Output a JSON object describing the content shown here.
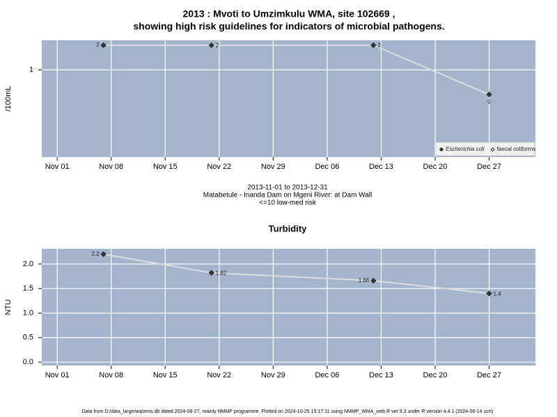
{
  "title": [
    "2013 : Mvoti to Umzimkulu WMA, site 102669 ,",
    "showing high risk guidelines for indicators of microbial pathogens."
  ],
  "caption": [
    "2013-11-01 to 2013-12-31",
    "Matabetule - Inanda Dam on Mgeni River: at Dam Wall",
    "<=10 low-med risk"
  ],
  "footer": "Data from D:/data_large/wq/wms.db dated 2024-08-27, mainly NMMP programme. Plotted on 2024-10-25 15:17:11 using NMMP_WMA_web.R ver 9.3 under R version 4.4.1 (2024-06-14 ucrt)",
  "chart_data": [
    {
      "type": "line",
      "ylabel": "/100mL",
      "x": [
        "2013-11-07",
        "2013-11-21",
        "2013-12-12",
        "2013-12-27"
      ],
      "series": [
        {
          "name": "Escherichia coli",
          "color": "#333333",
          "line_color": "#dddddd",
          "marker": "filled",
          "values": [
            2,
            2,
            2,
            0
          ]
        },
        {
          "name": "faecal coliforms",
          "color": "#333333",
          "marker": "open",
          "values": [
            null,
            null,
            null,
            null
          ]
        }
      ],
      "xlim": [
        "2013-10-30",
        "2014-01-02"
      ],
      "xticks": [
        {
          "value": "2013-11-01",
          "label": "Nov 01"
        },
        {
          "value": "2013-11-08",
          "label": "Nov 08"
        },
        {
          "value": "2013-11-15",
          "label": "Nov 15"
        },
        {
          "value": "2013-11-22",
          "label": "Nov 22"
        },
        {
          "value": "2013-11-29",
          "label": "Nov 29"
        },
        {
          "value": "2013-12-06",
          "label": "Dec 06"
        },
        {
          "value": "2013-12-13",
          "label": "Dec 13"
        },
        {
          "value": "2013-12-20",
          "label": "Dec 20"
        },
        {
          "value": "2013-12-27",
          "label": "Dec 27"
        }
      ],
      "ylim": [
        -2.54,
        2.2
      ],
      "yticks": [
        1
      ],
      "grid": true,
      "legend": "bottom-right",
      "background": "#a3b4cc"
    },
    {
      "type": "line",
      "title": "Turbidity",
      "ylabel": "NTU",
      "x": [
        "2013-11-07",
        "2013-11-21",
        "2013-12-12",
        "2013-12-27"
      ],
      "series": [
        {
          "name": null,
          "color": "#333333",
          "line_color": "#dddddd",
          "marker": "filled",
          "values": [
            2.2,
            1.82,
            1.66,
            1.4
          ]
        }
      ],
      "xlim": [
        "2013-10-30",
        "2014-01-02"
      ],
      "xticks": [
        {
          "value": "2013-11-01",
          "label": "Nov 01"
        },
        {
          "value": "2013-11-08",
          "label": "Nov 08"
        },
        {
          "value": "2013-11-15",
          "label": "Nov 15"
        },
        {
          "value": "2013-11-22",
          "label": "Nov 22"
        },
        {
          "value": "2013-11-29",
          "label": "Nov 29"
        },
        {
          "value": "2013-12-06",
          "label": "Dec 06"
        },
        {
          "value": "2013-12-13",
          "label": "Dec 13"
        },
        {
          "value": "2013-12-20",
          "label": "Dec 20"
        },
        {
          "value": "2013-12-27",
          "label": "Dec 27"
        }
      ],
      "ylim": [
        -0.07,
        2.31
      ],
      "yticks": [
        {
          "value": 0,
          "label": "0.0"
        },
        {
          "value": 0.5,
          "label": "0.5"
        },
        {
          "value": 1,
          "label": "1.0"
        },
        {
          "value": 1.5,
          "label": "1.5"
        },
        {
          "value": 2,
          "label": "2.0"
        }
      ],
      "grid": true,
      "background": "#a3b4cc"
    }
  ]
}
